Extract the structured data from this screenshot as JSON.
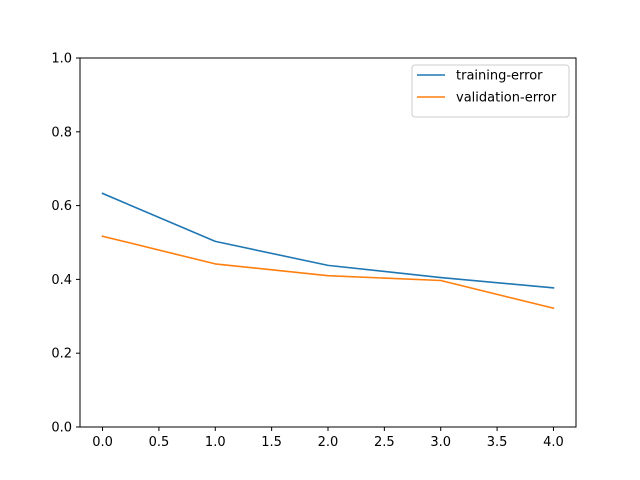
{
  "chart_data": {
    "type": "line",
    "title": "",
    "xlabel": "",
    "ylabel": "",
    "xlim": [
      -0.2,
      4.2
    ],
    "ylim": [
      0.0,
      1.0
    ],
    "x_ticks": [
      "0.0",
      "0.5",
      "1.0",
      "1.5",
      "2.0",
      "2.5",
      "3.0",
      "3.5",
      "4.0"
    ],
    "y_ticks": [
      "0.0",
      "0.2",
      "0.4",
      "0.6",
      "0.8",
      "1.0"
    ],
    "x_tick_values": [
      0.0,
      0.5,
      1.0,
      1.5,
      2.0,
      2.5,
      3.0,
      3.5,
      4.0
    ],
    "y_tick_values": [
      0.0,
      0.2,
      0.4,
      0.6,
      0.8,
      1.0
    ],
    "grid": false,
    "legend_position": "top-right",
    "x": [
      0,
      1,
      2,
      3,
      4
    ],
    "series": [
      {
        "name": "training-error",
        "color": "#1f77b4",
        "values": [
          0.633,
          0.503,
          0.438,
          0.405,
          0.377
        ]
      },
      {
        "name": "validation-error",
        "color": "#ff7f0e",
        "values": [
          0.517,
          0.442,
          0.41,
          0.397,
          0.322
        ]
      }
    ]
  }
}
